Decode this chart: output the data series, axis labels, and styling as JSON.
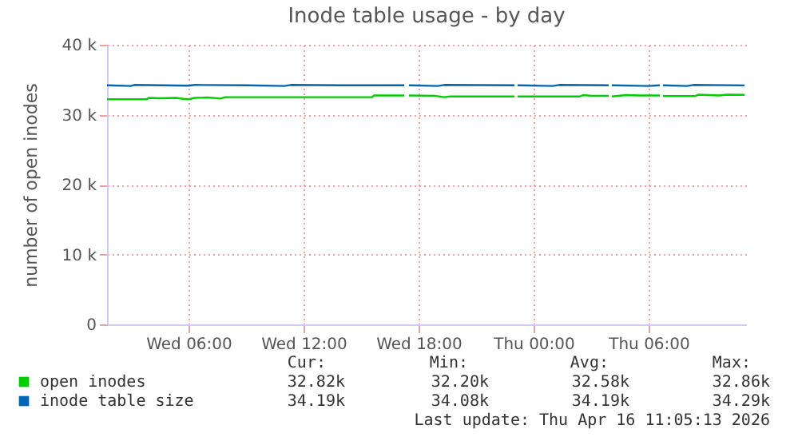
{
  "chart_data": {
    "type": "line",
    "title": "Inode table usage - by day",
    "ylabel": "number of open inodes",
    "xlim": [
      "2026-04-15T01:45",
      "2026-04-16T11:05"
    ],
    "xticks": [
      {
        "value": "2026-04-15T06:00",
        "label": "Wed 06:00"
      },
      {
        "value": "2026-04-15T12:00",
        "label": "Wed 12:00"
      },
      {
        "value": "2026-04-15T18:00",
        "label": "Wed 18:00"
      },
      {
        "value": "2026-04-16T00:00",
        "label": "Thu 00:00"
      },
      {
        "value": "2026-04-16T06:00",
        "label": "Thu 06:00"
      }
    ],
    "ylim": [
      0,
      40000
    ],
    "yticks": [
      0,
      {
        "value": 10000,
        "label": "10 k"
      },
      {
        "value": 20000,
        "label": "20 k"
      },
      {
        "value": 30000,
        "label": "30 k"
      },
      {
        "value": 40000,
        "label": "40 k"
      }
    ],
    "grid": true,
    "legend": "bottom",
    "series": [
      {
        "name": "open inodes",
        "color": "#00cc00",
        "x": [
          "2026-04-15T01:45",
          "2026-04-15T03:50",
          "2026-04-15T03:55",
          "2026-04-15T04:30",
          "2026-04-15T05:20",
          "2026-04-15T05:45",
          "2026-04-15T06:00",
          "2026-04-15T06:20",
          "2026-04-15T07:00",
          "2026-04-15T07:40",
          "2026-04-15T07:55",
          "2026-04-15T15:35",
          "2026-04-15T15:40",
          "2026-04-15T17:15",
          "2026-04-15T17:25",
          "2026-04-15T17:30",
          "2026-04-15T18:50",
          "2026-04-15T19:20",
          "2026-04-15T19:40",
          "2026-04-15T23:00",
          "2026-04-15T23:05",
          "2026-04-15T23:10",
          "2026-04-16T02:25",
          "2026-04-16T02:35",
          "2026-04-16T03:00",
          "2026-04-16T03:55",
          "2026-04-16T04:00",
          "2026-04-16T04:05",
          "2026-04-16T04:50",
          "2026-04-16T05:30",
          "2026-04-16T06:35",
          "2026-04-16T06:40",
          "2026-04-16T06:45",
          "2026-04-16T08:25",
          "2026-04-16T08:35",
          "2026-04-16T09:40",
          "2026-04-16T10:05",
          "2026-04-16T11:00"
        ],
        "values": [
          32200,
          32200,
          32400,
          32350,
          32400,
          32250,
          32200,
          32400,
          32450,
          32300,
          32500,
          32500,
          32750,
          32750,
          null,
          32750,
          32700,
          32500,
          32600,
          32600,
          null,
          32600,
          32600,
          32800,
          32700,
          32700,
          null,
          32600,
          32800,
          32750,
          32750,
          null,
          32650,
          32650,
          32850,
          32750,
          32860,
          32820
        ]
      },
      {
        "name": "inode table size",
        "color": "#0066b3",
        "x": [
          "2026-04-15T01:45",
          "2026-04-15T03:00",
          "2026-04-15T03:10",
          "2026-04-15T06:00",
          "2026-04-15T06:20",
          "2026-04-15T09:00",
          "2026-04-15T11:00",
          "2026-04-15T11:20",
          "2026-04-15T14:00",
          "2026-04-15T17:15",
          "2026-04-15T17:25",
          "2026-04-15T17:30",
          "2026-04-15T19:00",
          "2026-04-15T19:20",
          "2026-04-15T23:00",
          "2026-04-15T23:05",
          "2026-04-15T23:10",
          "2026-04-16T01:00",
          "2026-04-16T01:20",
          "2026-04-16T03:55",
          "2026-04-16T04:00",
          "2026-04-16T04:05",
          "2026-04-16T06:00",
          "2026-04-16T06:35",
          "2026-04-16T06:40",
          "2026-04-16T06:45",
          "2026-04-16T08:00",
          "2026-04-16T08:20",
          "2026-04-16T11:00"
        ],
        "values": [
          34200,
          34100,
          34250,
          34150,
          34250,
          34200,
          34100,
          34250,
          34200,
          34200,
          null,
          34200,
          34100,
          34250,
          34200,
          null,
          34200,
          34100,
          34250,
          34200,
          null,
          34200,
          34100,
          34200,
          null,
          34200,
          34100,
          34250,
          34190
        ]
      }
    ],
    "annotations": [
      "Cur:",
      "Min:",
      "Avg:",
      "Max:",
      "32.82k",
      "32.20k",
      "32.58k",
      "32.86k",
      "34.19k",
      "34.08k",
      "34.19k",
      "34.29k",
      "Last update: Thu Apr 16 11:05:13 2026"
    ]
  }
}
